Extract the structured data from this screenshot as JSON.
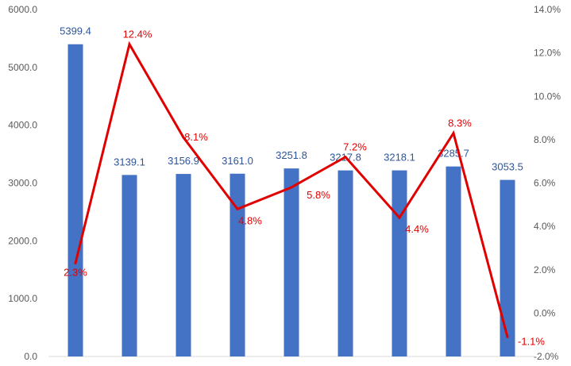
{
  "chart_data": {
    "type": "bar",
    "categories": [
      "",
      "",
      "",
      "",
      "",
      "",
      "",
      "",
      ""
    ],
    "series": [
      {
        "type": "bar",
        "axis": "left",
        "color": "#4472c4",
        "values": [
          5399.4,
          3139.1,
          3156.9,
          3161.0,
          3251.8,
          3217.8,
          3218.1,
          3285.7,
          3053.5
        ],
        "labels": [
          "5399.4",
          "3139.1",
          "3156.9",
          "3161.0",
          "3251.8",
          "3217.8",
          "3218.1",
          "3285.7",
          "3053.5"
        ]
      },
      {
        "type": "line",
        "axis": "right",
        "color": "#e00000",
        "values": [
          2.3,
          12.4,
          8.1,
          4.8,
          5.8,
          7.2,
          4.4,
          8.3,
          -1.1
        ],
        "labels": [
          "2.3%",
          "12.4%",
          "8.1%",
          "4.8%",
          "5.8%",
          "7.2%",
          "4.4%",
          "8.3%",
          "-1.1%"
        ]
      }
    ],
    "y_left": {
      "range": [
        0,
        6000
      ],
      "ticks": [
        "0.0",
        "1000.0",
        "2000.0",
        "3000.0",
        "4000.0",
        "5000.0",
        "6000.0"
      ]
    },
    "y_right": {
      "range": [
        -2,
        14
      ],
      "ticks": [
        "-2.0%",
        "0.0%",
        "2.0%",
        "4.0%",
        "6.0%",
        "8.0%",
        "10.0%",
        "12.0%",
        "14.0%"
      ]
    },
    "grid": false,
    "legend": "none"
  }
}
